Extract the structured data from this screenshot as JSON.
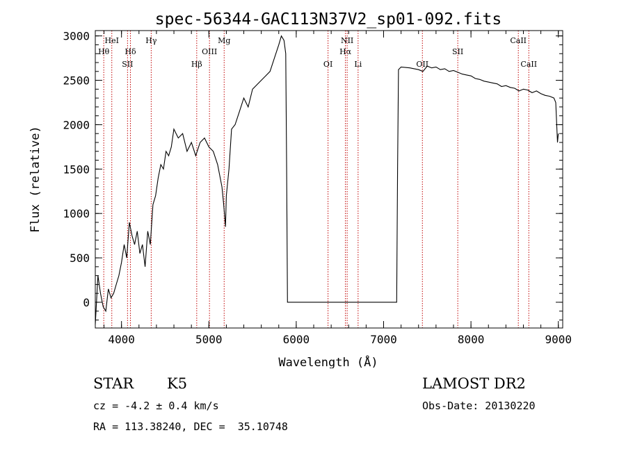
{
  "chart_data": {
    "type": "line",
    "title": "spec-56344-GAC113N37V2_sp01-092.fits",
    "xlabel": "Wavelength (Å)",
    "ylabel": "Flux (relative)",
    "xlim": [
      3700,
      9050
    ],
    "ylim": [
      -290,
      3060
    ],
    "xticks": [
      4000,
      5000,
      6000,
      7000,
      8000,
      9000
    ],
    "yticks": [
      0,
      500,
      1000,
      1500,
      2000,
      2500,
      3000
    ],
    "grid": false,
    "series": [
      {
        "x": [
          3700,
          3730,
          3760,
          3790,
          3820,
          3850,
          3880,
          3910,
          3940,
          3970,
          4000,
          4030,
          4060,
          4090,
          4120,
          4150,
          4180,
          4210,
          4240,
          4270,
          4300,
          4330,
          4360,
          4390,
          4420,
          4450,
          4480,
          4510,
          4540,
          4570,
          4600,
          4650,
          4700,
          4750,
          4800,
          4850,
          4900,
          4950,
          5000,
          5050,
          5100,
          5150,
          5170,
          5190,
          5200,
          5230,
          5260,
          5300,
          5350,
          5400,
          5450,
          5500,
          5550,
          5600,
          5650,
          5700,
          5750,
          5800,
          5830,
          5860,
          5880,
          5890,
          5900,
          7150,
          7160,
          7170,
          7200,
          7300,
          7400,
          7450,
          7500,
          7550,
          7600,
          7650,
          7700,
          7750,
          7800,
          7850,
          7900,
          7950,
          8000,
          8050,
          8100,
          8150,
          8200,
          8250,
          8300,
          8350,
          8400,
          8450,
          8500,
          8550,
          8600,
          8650,
          8700,
          8750,
          8800,
          8850,
          8900,
          8950,
          8970,
          8990,
          9000
        ],
        "y": [
          -250,
          300,
          100,
          -50,
          -100,
          150,
          50,
          100,
          200,
          300,
          450,
          650,
          500,
          900,
          750,
          650,
          800,
          550,
          650,
          400,
          800,
          650,
          1100,
          1200,
          1400,
          1550,
          1500,
          1700,
          1650,
          1750,
          1950,
          1850,
          1900,
          1700,
          1800,
          1650,
          1800,
          1850,
          1750,
          1700,
          1550,
          1300,
          1100,
          850,
          1200,
          1500,
          1950,
          2000,
          2150,
          2300,
          2200,
          2400,
          2450,
          2500,
          2550,
          2600,
          2750,
          2900,
          3000,
          2950,
          2800,
          1500,
          0,
          0,
          1500,
          2620,
          2650,
          2640,
          2620,
          2600,
          2660,
          2640,
          2650,
          2620,
          2630,
          2600,
          2610,
          2590,
          2570,
          2560,
          2550,
          2520,
          2510,
          2490,
          2480,
          2470,
          2460,
          2430,
          2440,
          2420,
          2410,
          2380,
          2400,
          2390,
          2360,
          2380,
          2350,
          2330,
          2320,
          2300,
          2250,
          1800,
          1900
        ]
      }
    ],
    "lines": [
      {
        "wl": 3797,
        "label": "Hθ",
        "row": 1
      },
      {
        "wl": 3889,
        "label": "HeI",
        "row": 0
      },
      {
        "wl": 4069,
        "label": "SII",
        "row": 2
      },
      {
        "wl": 4102,
        "label": "Hδ",
        "row": 1
      },
      {
        "wl": 4340,
        "label": "Hγ",
        "row": 0
      },
      {
        "wl": 4861,
        "label": "Hβ",
        "row": 2
      },
      {
        "wl": 5007,
        "label": "OIII",
        "row": 1
      },
      {
        "wl": 5175,
        "label": "Mg",
        "row": 0
      },
      {
        "wl": 6364,
        "label": "OI",
        "row": 2
      },
      {
        "wl": 6563,
        "label": "Hα",
        "row": 1
      },
      {
        "wl": 6583,
        "label": "NII",
        "row": 0
      },
      {
        "wl": 6708,
        "label": "Li",
        "row": 2
      },
      {
        "wl": 7444,
        "label": "OII",
        "row": 2
      },
      {
        "wl": 7849,
        "label": "SII",
        "row": 1
      },
      {
        "wl": 8542,
        "label": "CaII",
        "row": 0
      },
      {
        "wl": 8662,
        "label": "CaII",
        "row": 2
      }
    ]
  },
  "info": {
    "class": "STAR",
    "subclass": "K5",
    "survey": "LAMOST DR2",
    "cz": "cz = -4.2 ± 0.4 km/s",
    "obsdate": "Obs-Date: 20130220",
    "radec": "RA = 113.38240, DEC =  35.10748"
  },
  "colors": {
    "spectrum": "#000000",
    "line_marker": "#c00000",
    "background": "#ffffff"
  }
}
